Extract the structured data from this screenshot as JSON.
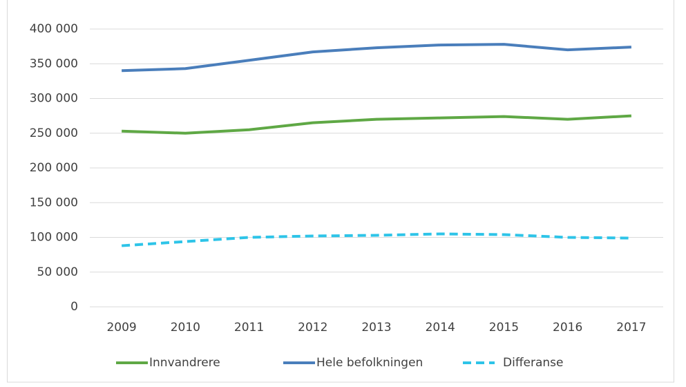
{
  "chart_data": {
    "type": "line",
    "categories": [
      "2009",
      "2010",
      "2011",
      "2012",
      "2013",
      "2014",
      "2015",
      "2016",
      "2017"
    ],
    "series": [
      {
        "name": "Innvandrere",
        "color": "#5fa845",
        "values": [
          253000,
          250000,
          255000,
          265000,
          270000,
          272000,
          274000,
          270000,
          275000
        ]
      },
      {
        "name": "Hele befolkningen",
        "color": "#4a7ebb",
        "values": [
          340000,
          343000,
          355000,
          367000,
          373000,
          377000,
          378000,
          370000,
          374000
        ]
      },
      {
        "name": "Differanse",
        "color": "#2ec4e8",
        "dashed": true,
        "values": [
          88000,
          94000,
          100000,
          102000,
          103000,
          105000,
          104000,
          100000,
          99000
        ]
      }
    ],
    "ylim": [
      0,
      400000
    ],
    "yticks": [
      0,
      {
        "value": 50000,
        "label": "50 000"
      },
      {
        "value": 100000,
        "label": "100 000"
      },
      {
        "value": 150000,
        "label": "150 000"
      },
      {
        "value": 200000,
        "label": "200 000"
      },
      {
        "value": 250000,
        "label": "250 000"
      },
      {
        "value": 300000,
        "label": "300 000"
      },
      {
        "value": 350000,
        "label": "350 000"
      },
      {
        "value": 400000,
        "label": "400 000"
      }
    ],
    "grid": true,
    "legend": "bottom"
  }
}
